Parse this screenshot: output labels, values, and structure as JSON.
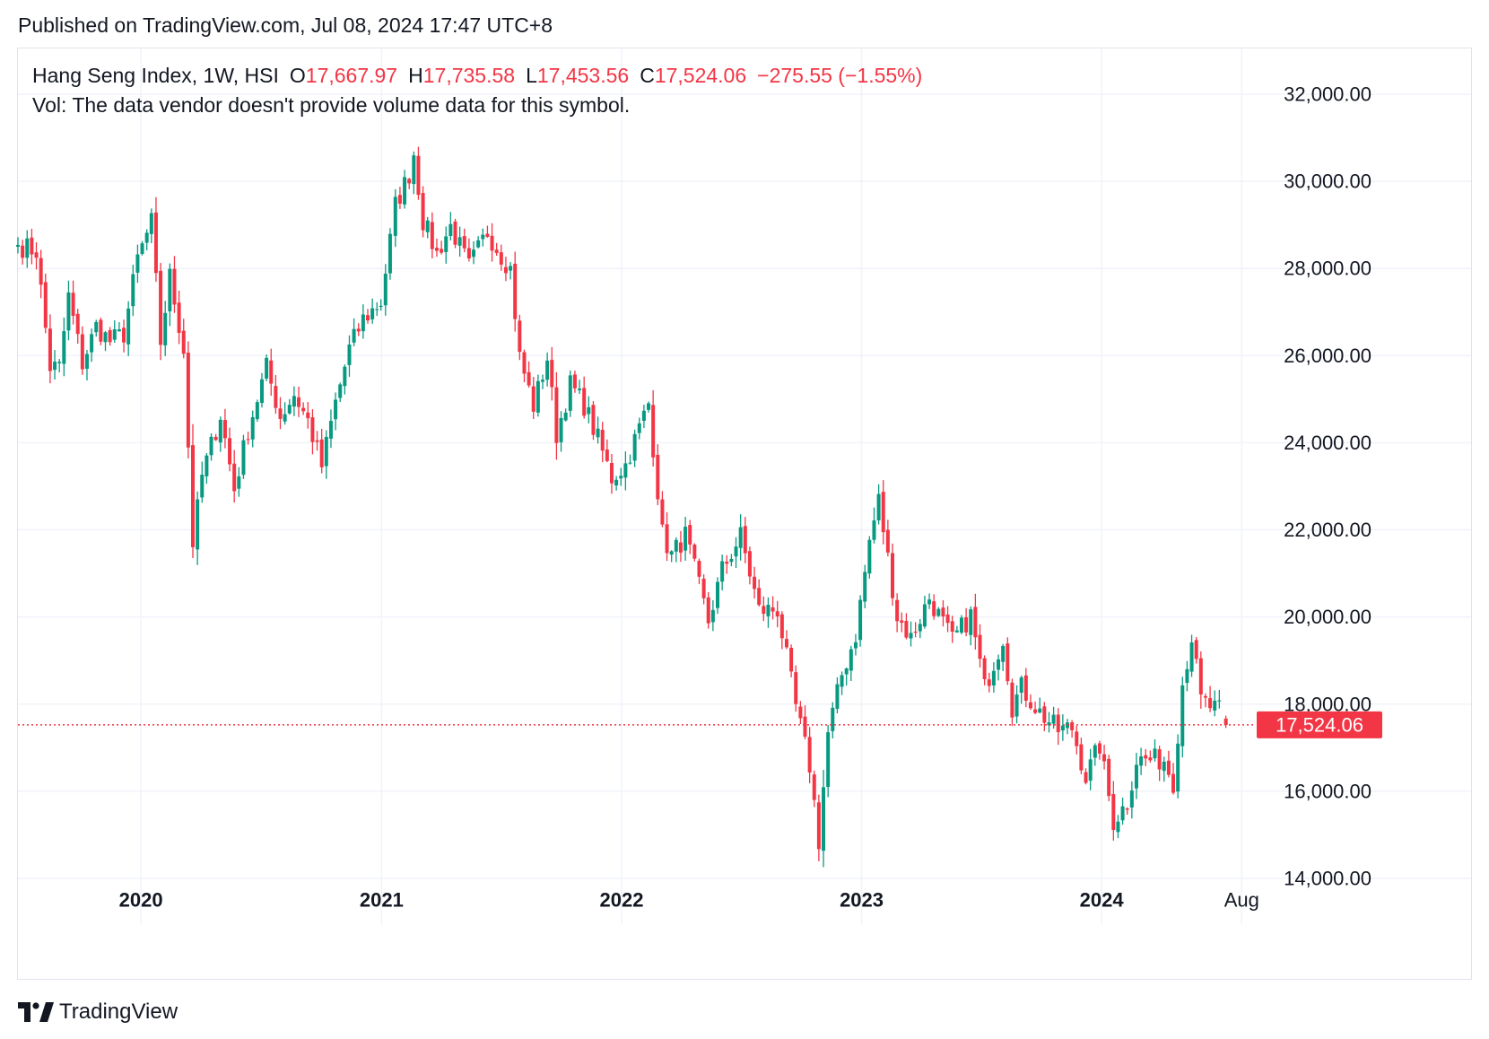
{
  "published": "Published on TradingView.com, Jul 08, 2024 17:47 UTC+8",
  "header": {
    "symbol": "Hang Seng Index, 1W, HSI",
    "open_label": "O",
    "open": "17,667.97",
    "high_label": "H",
    "high": "17,735.58",
    "low_label": "L",
    "low": "17,453.56",
    "close_label": "C",
    "close": "17,524.06",
    "change": "−275.55 (−1.55%)"
  },
  "volume_note": "Vol: The data vendor doesn't provide volume data for this symbol.",
  "colors": {
    "up": "#089981",
    "down": "#f23645",
    "grid": "#f0f3fa",
    "axis_text": "#131722"
  },
  "footer": {
    "brand": "TradingView",
    "logo_icon": "tradingview-logo-icon"
  },
  "chart_data": {
    "type": "candlestick",
    "interval": "1W",
    "y_ticks": [
      "32,000.00",
      "30,000.00",
      "28,000.00",
      "26,000.00",
      "24,000.00",
      "22,000.00",
      "20,000.00",
      "18,000.00",
      "16,000.00",
      "14,000.00"
    ],
    "y_tick_values": [
      32000,
      30000,
      28000,
      26000,
      24000,
      22000,
      20000,
      18000,
      16000,
      14000
    ],
    "x_ticks": [
      {
        "label": "2020",
        "date": "2020-01-01",
        "bold": true
      },
      {
        "label": "2021",
        "date": "2021-01-01",
        "bold": true
      },
      {
        "label": "2022",
        "date": "2022-01-01",
        "bold": true
      },
      {
        "label": "2023",
        "date": "2023-01-01",
        "bold": true
      },
      {
        "label": "2024",
        "date": "2024-01-01",
        "bold": true
      },
      {
        "label": "Aug",
        "date": "2024-08-01",
        "bold": false
      }
    ],
    "x_range": [
      "2019-06-28",
      "2024-08-02"
    ],
    "ylim": [
      12950,
      33050
    ],
    "last_price": 17524.06,
    "last_price_label": "17,524.06",
    "anchors": [
      {
        "date": "2019-06-28",
        "close": 28542
      },
      {
        "date": "2019-07-26",
        "close": 28397
      },
      {
        "date": "2019-08-16",
        "close": 25734
      },
      {
        "date": "2019-08-30",
        "close": 25725
      },
      {
        "date": "2019-09-13",
        "close": 27353
      },
      {
        "date": "2019-10-04",
        "close": 25821
      },
      {
        "date": "2019-10-25",
        "close": 26667
      },
      {
        "date": "2019-11-15",
        "close": 26327
      },
      {
        "date": "2019-12-06",
        "close": 26498
      },
      {
        "date": "2019-12-27",
        "close": 28225
      },
      {
        "date": "2020-01-17",
        "close": 29056
      },
      {
        "date": "2020-01-31",
        "close": 26313
      },
      {
        "date": "2020-02-14",
        "close": 27816
      },
      {
        "date": "2020-03-06",
        "close": 26146
      },
      {
        "date": "2020-03-20",
        "close": 21709
      },
      {
        "date": "2020-04-03",
        "close": 23236
      },
      {
        "date": "2020-05-01",
        "close": 24644
      },
      {
        "date": "2020-05-22",
        "close": 22930
      },
      {
        "date": "2020-06-12",
        "close": 24301
      },
      {
        "date": "2020-07-10",
        "close": 25727
      },
      {
        "date": "2020-07-31",
        "close": 24595
      },
      {
        "date": "2020-08-21",
        "close": 25113
      },
      {
        "date": "2020-09-11",
        "close": 24503
      },
      {
        "date": "2020-10-02",
        "close": 23459
      },
      {
        "date": "2020-10-23",
        "close": 24918
      },
      {
        "date": "2020-11-13",
        "close": 26156
      },
      {
        "date": "2020-12-04",
        "close": 26835
      },
      {
        "date": "2020-12-31",
        "close": 27231
      },
      {
        "date": "2021-01-22",
        "close": 29447
      },
      {
        "date": "2021-02-12",
        "close": 30173
      },
      {
        "date": "2021-02-19",
        "close": 30644
      },
      {
        "date": "2021-03-05",
        "close": 29098
      },
      {
        "date": "2021-03-26",
        "close": 28336
      },
      {
        "date": "2021-04-16",
        "close": 28970
      },
      {
        "date": "2021-05-14",
        "close": 28027
      },
      {
        "date": "2021-06-11",
        "close": 28842
      },
      {
        "date": "2021-07-02",
        "close": 28310
      },
      {
        "date": "2021-07-16",
        "close": 27996
      },
      {
        "date": "2021-07-30",
        "close": 25961
      },
      {
        "date": "2021-08-20",
        "close": 24849
      },
      {
        "date": "2021-09-10",
        "close": 25951
      },
      {
        "date": "2021-09-24",
        "close": 24192
      },
      {
        "date": "2021-10-15",
        "close": 25331
      },
      {
        "date": "2021-11-05",
        "close": 24870
      },
      {
        "date": "2021-11-26",
        "close": 24080
      },
      {
        "date": "2021-12-17",
        "close": 23192
      },
      {
        "date": "2022-01-07",
        "close": 23493
      },
      {
        "date": "2022-02-11",
        "close": 24906
      },
      {
        "date": "2022-03-04",
        "close": 21905
      },
      {
        "date": "2022-03-18",
        "close": 21412
      },
      {
        "date": "2022-04-08",
        "close": 21872
      },
      {
        "date": "2022-05-13",
        "close": 19898
      },
      {
        "date": "2022-06-03",
        "close": 21082
      },
      {
        "date": "2022-07-01",
        "close": 21860
      },
      {
        "date": "2022-07-29",
        "close": 20156
      },
      {
        "date": "2022-08-26",
        "close": 20170
      },
      {
        "date": "2022-09-23",
        "close": 17933
      },
      {
        "date": "2022-10-14",
        "close": 16587
      },
      {
        "date": "2022-10-28",
        "close": 14863
      },
      {
        "date": "2022-11-11",
        "close": 17326
      },
      {
        "date": "2022-12-02",
        "close": 18675
      },
      {
        "date": "2022-12-23",
        "close": 19594
      },
      {
        "date": "2023-01-13",
        "close": 21738
      },
      {
        "date": "2023-01-27",
        "close": 22689
      },
      {
        "date": "2023-02-24",
        "close": 20010
      },
      {
        "date": "2023-03-17",
        "close": 19519
      },
      {
        "date": "2023-04-14",
        "close": 20438
      },
      {
        "date": "2023-05-19",
        "close": 19451
      },
      {
        "date": "2023-06-16",
        "close": 20040
      },
      {
        "date": "2023-07-07",
        "close": 18365
      },
      {
        "date": "2023-08-04",
        "close": 19539
      },
      {
        "date": "2023-08-18",
        "close": 17950
      },
      {
        "date": "2023-09-01",
        "close": 18382
      },
      {
        "date": "2023-09-29",
        "close": 17809
      },
      {
        "date": "2023-10-27",
        "close": 17398
      },
      {
        "date": "2023-11-17",
        "close": 17454
      },
      {
        "date": "2023-12-08",
        "close": 16334
      },
      {
        "date": "2023-12-29",
        "close": 17047
      },
      {
        "date": "2024-01-19",
        "close": 15308
      },
      {
        "date": "2024-02-09",
        "close": 15747
      },
      {
        "date": "2024-02-23",
        "close": 16726
      },
      {
        "date": "2024-03-15",
        "close": 16721
      },
      {
        "date": "2024-04-05",
        "close": 16724
      },
      {
        "date": "2024-04-19",
        "close": 16224
      },
      {
        "date": "2024-05-03",
        "close": 18476
      },
      {
        "date": "2024-05-17",
        "close": 19554
      },
      {
        "date": "2024-05-31",
        "close": 18080
      },
      {
        "date": "2024-06-14",
        "close": 17942
      },
      {
        "date": "2024-07-05",
        "close": 17799
      },
      {
        "date": "2024-07-08",
        "close": 17524
      }
    ]
  }
}
